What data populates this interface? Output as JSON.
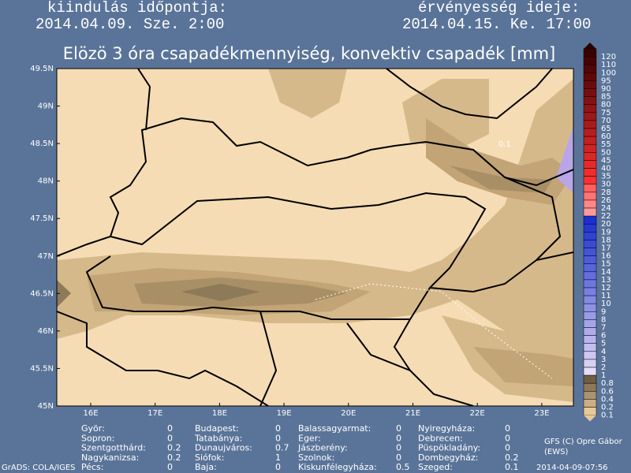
{
  "header": {
    "start_label": "kiindulás időpontja:",
    "start_value": "2014.04.09. Sze. 2:00",
    "valid_label": "érvényesség ideje:",
    "valid_value": "2014.04.15. Ke. 17:00"
  },
  "title": "Elözö 3 óra csapadékmennyiség, konvektiv csapadék [mm]",
  "map": {
    "lat_labels": [
      "49.5N",
      "49N",
      "48.5N",
      "48N",
      "47.5N",
      "47N",
      "46.5N",
      "46N",
      "45.5N",
      "45N"
    ],
    "lon_labels": [
      "16E",
      "17E",
      "18E",
      "19E",
      "20E",
      "21E",
      "22E",
      "23E"
    ],
    "contour_label": "0.1"
  },
  "colorbar": {
    "labels": [
      120,
      110,
      100,
      95,
      90,
      85,
      80,
      75,
      70,
      65,
      60,
      55,
      50,
      45,
      40,
      35,
      30,
      28,
      26,
      24,
      22,
      20,
      19,
      18,
      17,
      16,
      15,
      14,
      13,
      12,
      11,
      10,
      9,
      8,
      7,
      6,
      5,
      4,
      3,
      2,
      1,
      0.8,
      0.6,
      0.4,
      0.2,
      0.1
    ]
  },
  "stations": [
    [
      [
        "Györ:",
        0
      ],
      [
        "Sopron:",
        0
      ],
      [
        "Szentgotthárd:",
        0.2
      ],
      [
        "Nagykanizsa:",
        0.2
      ],
      [
        "Pécs:",
        0
      ]
    ],
    [
      [
        "Budapest:",
        0
      ],
      [
        "Tatabánya:",
        0
      ],
      [
        "Dunaujváros:",
        0.7
      ],
      [
        "Siófok:",
        1
      ],
      [
        "Baja:",
        0
      ]
    ],
    [
      [
        "Balassagyarmat:",
        0
      ],
      [
        "Eger:",
        0
      ],
      [
        "Jászberény:",
        0
      ],
      [
        "Szolnok:",
        0
      ],
      [
        "Kiskunfélegyháza:",
        0.5
      ]
    ],
    [
      [
        "Nyiregyháza:",
        0
      ],
      [
        "Debrecen:",
        0
      ],
      [
        "Püspökladány:",
        0
      ],
      [
        "Dombegyház:",
        0.2
      ],
      [
        "Szeged:",
        0.1
      ]
    ]
  ],
  "footer": {
    "credit": "GFS (C) Opre Gábor",
    "credit_sub": "(EWS)",
    "grads": "GrADS: COLA/IGES",
    "timestamp": "2014-04-09-07:56"
  }
}
